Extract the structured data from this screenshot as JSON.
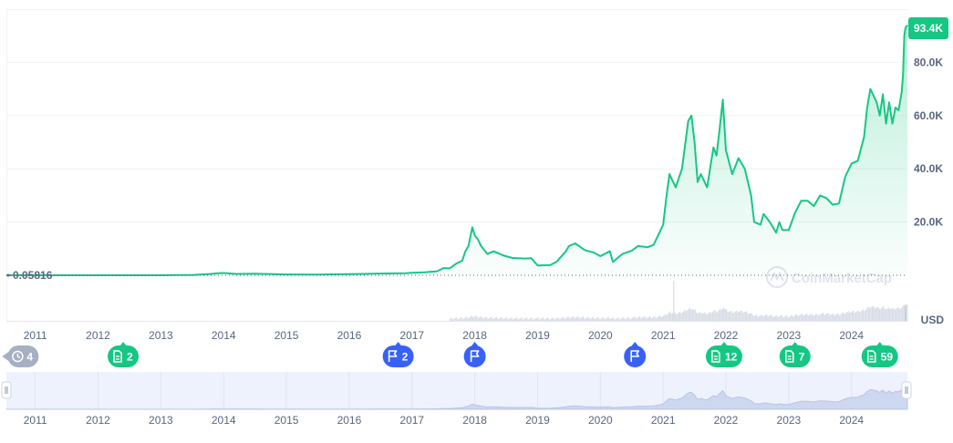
{
  "chart_data": {
    "type": "area",
    "currency_label": "USD",
    "watermark": "CoinMarketCap",
    "start_value_label": "0.05816",
    "current_price_label": "93.4K",
    "y_ticks": [
      {
        "value": 20000,
        "label": "20.0K"
      },
      {
        "value": 40000,
        "label": "40.0K"
      },
      {
        "value": 60000,
        "label": "60.0K"
      },
      {
        "value": 80000,
        "label": "80.0K"
      }
    ],
    "ylim": [
      0,
      100000
    ],
    "xlim": [
      2010.54,
      2024.89
    ],
    "x_ticks": [
      "2011",
      "2012",
      "2013",
      "2014",
      "2015",
      "2016",
      "2017",
      "2018",
      "2019",
      "2020",
      "2021",
      "2022",
      "2023",
      "2024"
    ],
    "series": [
      {
        "x": [
          2010.54,
          2011.0,
          2011.5,
          2012.0,
          2012.5,
          2013.0,
          2013.3,
          2013.5,
          2013.8,
          2013.92,
          2014.0,
          2014.2,
          2014.5,
          2014.8,
          2015.0,
          2015.5,
          2016.0,
          2016.5,
          2016.9,
          2017.0,
          2017.2,
          2017.4,
          2017.5,
          2017.6,
          2017.7,
          2017.8,
          2017.85,
          2017.9,
          2017.96,
          2018.0,
          2018.05,
          2018.1,
          2018.2,
          2018.3,
          2018.45,
          2018.6,
          2018.8,
          2018.9,
          2019.0,
          2019.2,
          2019.3,
          2019.45,
          2019.5,
          2019.6,
          2019.75,
          2019.9,
          2020.0,
          2020.15,
          2020.2,
          2020.35,
          2020.5,
          2020.6,
          2020.75,
          2020.85,
          2020.92,
          2021.0,
          2021.05,
          2021.1,
          2021.2,
          2021.3,
          2021.4,
          2021.45,
          2021.5,
          2021.55,
          2021.6,
          2021.7,
          2021.8,
          2021.85,
          2021.9,
          2021.95,
          2022.0,
          2022.1,
          2022.2,
          2022.3,
          2022.4,
          2022.45,
          2022.55,
          2022.6,
          2022.7,
          2022.8,
          2022.85,
          2022.9,
          2023.0,
          2023.1,
          2023.2,
          2023.3,
          2023.4,
          2023.5,
          2023.6,
          2023.7,
          2023.8,
          2023.9,
          2024.0,
          2024.1,
          2024.2,
          2024.25,
          2024.3,
          2024.4,
          2024.45,
          2024.5,
          2024.55,
          2024.6,
          2024.65,
          2024.7,
          2024.75,
          2024.8,
          2024.82,
          2024.84,
          2024.86,
          2024.89
        ],
        "values": [
          0.06,
          0.3,
          15,
          5,
          7,
          13,
          93,
          100,
          500,
          800,
          850,
          500,
          600,
          400,
          320,
          260,
          430,
          650,
          740,
          970,
          1100,
          1500,
          2700,
          2600,
          4300,
          5500,
          9000,
          11000,
          18000,
          15000,
          13500,
          11000,
          8000,
          9000,
          7500,
          6500,
          6300,
          6400,
          3700,
          3800,
          5000,
          9000,
          11000,
          12000,
          9500,
          8500,
          7200,
          9000,
          5000,
          8000,
          9200,
          11000,
          10500,
          11500,
          15000,
          19000,
          29000,
          38000,
          33000,
          40000,
          58000,
          60000,
          50000,
          35000,
          38000,
          33000,
          48000,
          45000,
          55000,
          66000,
          47000,
          38000,
          44000,
          40000,
          30000,
          20000,
          19000,
          23000,
          20000,
          16000,
          20000,
          17000,
          17000,
          23500,
          28000,
          28000,
          26000,
          30000,
          29000,
          26500,
          27000,
          37000,
          42000,
          43000,
          52000,
          63000,
          70000,
          65000,
          60000,
          68000,
          57000,
          65000,
          57000,
          63000,
          62000,
          69000,
          75000,
          90000,
          93000,
          94000
        ]
      }
    ]
  },
  "event_markers": [
    {
      "label": "4",
      "icon": "history-icon",
      "color": "#a6b0c3",
      "shape": "pill-left",
      "year": 2010.56
    },
    {
      "label": "2",
      "icon": "document-icon",
      "color": "#16c784",
      "shape": "pill",
      "year": 2012.4
    },
    {
      "label": "2",
      "icon": "flag-icon",
      "color": "#3861fb",
      "shape": "pill",
      "year": 2016.78
    },
    {
      "label": "",
      "icon": "flag-icon",
      "color": "#3861fb",
      "shape": "circle",
      "year": 2018.0
    },
    {
      "label": "",
      "icon": "flag-icon",
      "color": "#3861fb",
      "shape": "circle",
      "year": 2020.55
    },
    {
      "label": "12",
      "icon": "document-icon",
      "color": "#16c784",
      "shape": "pill",
      "year": 2021.97
    },
    {
      "label": "7",
      "icon": "document-icon",
      "color": "#16c784",
      "shape": "pill",
      "year": 2023.1
    },
    {
      "label": "59",
      "icon": "document-icon",
      "color": "#16c784",
      "shape": "pill",
      "year": 2024.45
    }
  ],
  "colors": {
    "line": "#16c784",
    "area_top": "#16c784",
    "grid": "#eff2f5",
    "axis_text": "#58667e",
    "navigator_bg": "#eef2fc",
    "navigator_fill": "#cdd7ef",
    "volume": "#cfd6e4",
    "baseline": "#58667e"
  }
}
